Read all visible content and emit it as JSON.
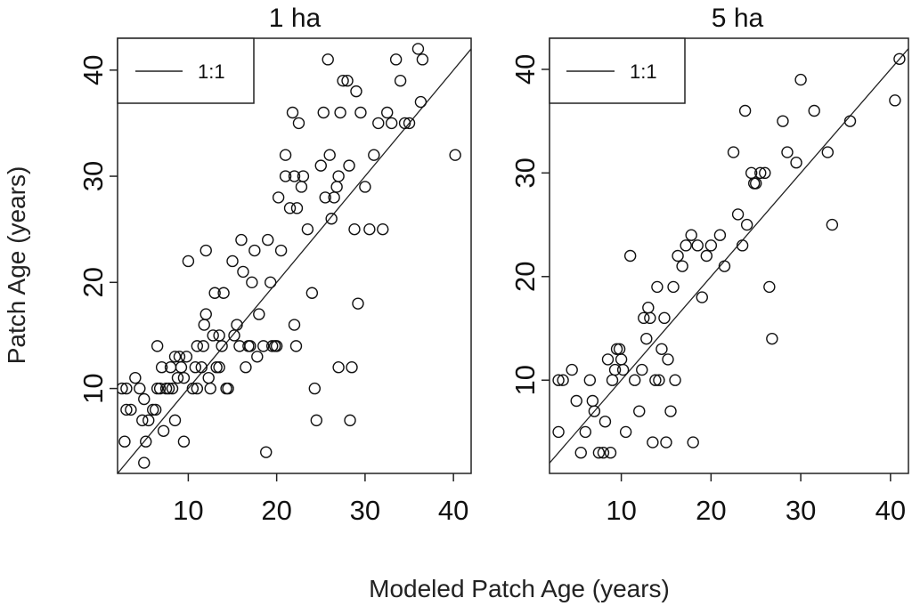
{
  "figure": {
    "xlabel": "Modeled Patch Age (years)",
    "ylabel": "Patch Age (years)"
  },
  "chart_data": [
    {
      "type": "scatter",
      "title": "1 ha",
      "xlabel": "Modeled Patch Age (years)",
      "ylabel": "Patch Age (years)",
      "xlim": [
        2,
        42
      ],
      "ylim": [
        2,
        43
      ],
      "xticks": [
        10,
        20,
        30,
        40
      ],
      "yticks": [
        10,
        20,
        30,
        40
      ],
      "grid": false,
      "legend": {
        "position": "top-left",
        "label": "1:1"
      },
      "reference_line": "1:1",
      "marker_color": "#111111",
      "points": [
        [
          2.5,
          10
        ],
        [
          3,
          10
        ],
        [
          3,
          8
        ],
        [
          2.8,
          5
        ],
        [
          3.5,
          8
        ],
        [
          4,
          11
        ],
        [
          4.5,
          10
        ],
        [
          5,
          9
        ],
        [
          4.8,
          7
        ],
        [
          5.5,
          7
        ],
        [
          5.2,
          5
        ],
        [
          5,
          3
        ],
        [
          6,
          8
        ],
        [
          6.3,
          8
        ],
        [
          6.5,
          10
        ],
        [
          6.5,
          14
        ],
        [
          6.8,
          10
        ],
        [
          7,
          12
        ],
        [
          7.2,
          6
        ],
        [
          7.5,
          10
        ],
        [
          7.8,
          10
        ],
        [
          8,
          12
        ],
        [
          8.5,
          13
        ],
        [
          8.2,
          10
        ],
        [
          8.5,
          7
        ],
        [
          8.8,
          11
        ],
        [
          9,
          13
        ],
        [
          9.2,
          12
        ],
        [
          9.5,
          11
        ],
        [
          9.5,
          5
        ],
        [
          9.8,
          13
        ],
        [
          10,
          22
        ],
        [
          10.5,
          10
        ],
        [
          10.8,
          12
        ],
        [
          11,
          10
        ],
        [
          11,
          14
        ],
        [
          11.5,
          12
        ],
        [
          11.8,
          16
        ],
        [
          11.7,
          14
        ],
        [
          12,
          17
        ],
        [
          12,
          23
        ],
        [
          12.3,
          11
        ],
        [
          12.5,
          10
        ],
        [
          12.8,
          15
        ],
        [
          13,
          19
        ],
        [
          13.2,
          12
        ],
        [
          13.5,
          12
        ],
        [
          13.5,
          15
        ],
        [
          13.8,
          14
        ],
        [
          14,
          19
        ],
        [
          14.3,
          10
        ],
        [
          14.5,
          10
        ],
        [
          15,
          22
        ],
        [
          15.2,
          15
        ],
        [
          15.5,
          16
        ],
        [
          15.8,
          14
        ],
        [
          16,
          24
        ],
        [
          16.2,
          21
        ],
        [
          16.5,
          12
        ],
        [
          16.8,
          14
        ],
        [
          17,
          14
        ],
        [
          17.2,
          20
        ],
        [
          17.5,
          23
        ],
        [
          17.8,
          13
        ],
        [
          18,
          17
        ],
        [
          18.5,
          14
        ],
        [
          18.8,
          4
        ],
        [
          19,
          24
        ],
        [
          19.3,
          20
        ],
        [
          19.5,
          14
        ],
        [
          19.8,
          14
        ],
        [
          20,
          14
        ],
        [
          20.2,
          28
        ],
        [
          20.5,
          23
        ],
        [
          21,
          32
        ],
        [
          21,
          30
        ],
        [
          21.5,
          27
        ],
        [
          21.8,
          36
        ],
        [
          22,
          30
        ],
        [
          22,
          16
        ],
        [
          22.2,
          14
        ],
        [
          22.5,
          35
        ],
        [
          22.3,
          27
        ],
        [
          22.8,
          29
        ],
        [
          23,
          30
        ],
        [
          23.5,
          25
        ],
        [
          24,
          19
        ],
        [
          24.3,
          10
        ],
        [
          24.5,
          7
        ],
        [
          25,
          31
        ],
        [
          25.3,
          36
        ],
        [
          25.5,
          28
        ],
        [
          25.8,
          41
        ],
        [
          26,
          32
        ],
        [
          26.2,
          26
        ],
        [
          26.5,
          28
        ],
        [
          26.8,
          29
        ],
        [
          27,
          30
        ],
        [
          27,
          12
        ],
        [
          27.2,
          36
        ],
        [
          27.5,
          39
        ],
        [
          28,
          39
        ],
        [
          28.2,
          31
        ],
        [
          28.5,
          12
        ],
        [
          28.3,
          7
        ],
        [
          28.8,
          25
        ],
        [
          29,
          38
        ],
        [
          29.2,
          18
        ],
        [
          29.5,
          36
        ],
        [
          30,
          29
        ],
        [
          30.5,
          25
        ],
        [
          31,
          32
        ],
        [
          31.5,
          35
        ],
        [
          32,
          25
        ],
        [
          32.5,
          36
        ],
        [
          33,
          35
        ],
        [
          33.5,
          41
        ],
        [
          34,
          39
        ],
        [
          34.5,
          35
        ],
        [
          35,
          35
        ],
        [
          36,
          42
        ],
        [
          36.5,
          41
        ],
        [
          36.3,
          37
        ],
        [
          40.2,
          32
        ]
      ]
    },
    {
      "type": "scatter",
      "title": "5 ha",
      "xlabel": "Modeled Patch Age (years)",
      "ylabel": "Patch Age (years)",
      "xlim": [
        2,
        42
      ],
      "ylim": [
        1,
        43
      ],
      "xticks": [
        10,
        20,
        30,
        40
      ],
      "yticks": [
        10,
        20,
        30,
        40
      ],
      "grid": false,
      "legend": {
        "position": "top-left",
        "label": "1:1"
      },
      "reference_line": "1:1",
      "marker_color": "#111111",
      "points": [
        [
          3,
          10
        ],
        [
          3.5,
          10
        ],
        [
          3,
          5
        ],
        [
          4.5,
          11
        ],
        [
          5,
          8
        ],
        [
          5.5,
          3
        ],
        [
          6,
          5
        ],
        [
          6.5,
          10
        ],
        [
          6.8,
          8
        ],
        [
          7,
          7
        ],
        [
          7.5,
          3
        ],
        [
          8,
          3
        ],
        [
          8.2,
          6
        ],
        [
          8.5,
          12
        ],
        [
          8.8,
          3
        ],
        [
          9,
          10
        ],
        [
          9.3,
          11
        ],
        [
          9.5,
          13
        ],
        [
          9.8,
          13
        ],
        [
          10,
          12
        ],
        [
          10.2,
          11
        ],
        [
          10.5,
          5
        ],
        [
          11,
          22
        ],
        [
          11.5,
          10
        ],
        [
          12,
          7
        ],
        [
          12.3,
          11
        ],
        [
          12.5,
          16
        ],
        [
          12.8,
          14
        ],
        [
          13,
          17
        ],
        [
          13.2,
          16
        ],
        [
          13.5,
          4
        ],
        [
          13.8,
          10
        ],
        [
          14,
          19
        ],
        [
          14.2,
          10
        ],
        [
          14.5,
          13
        ],
        [
          14.8,
          16
        ],
        [
          15,
          4
        ],
        [
          15.2,
          12
        ],
        [
          15.5,
          7
        ],
        [
          15.8,
          19
        ],
        [
          16,
          10
        ],
        [
          16.3,
          22
        ],
        [
          16.8,
          21
        ],
        [
          17.2,
          23
        ],
        [
          17.8,
          24
        ],
        [
          18,
          4
        ],
        [
          18.5,
          23
        ],
        [
          19,
          18
        ],
        [
          19.5,
          22
        ],
        [
          20,
          23
        ],
        [
          21,
          24
        ],
        [
          21.5,
          21
        ],
        [
          22.5,
          32
        ],
        [
          23,
          26
        ],
        [
          23.5,
          23
        ],
        [
          23.8,
          36
        ],
        [
          24,
          25
        ],
        [
          24.5,
          30
        ],
        [
          24.8,
          29
        ],
        [
          25,
          29
        ],
        [
          25.5,
          30
        ],
        [
          26,
          30
        ],
        [
          26.5,
          19
        ],
        [
          26.8,
          14
        ],
        [
          28,
          35
        ],
        [
          28.5,
          32
        ],
        [
          29.5,
          31
        ],
        [
          30,
          39
        ],
        [
          31.5,
          36
        ],
        [
          33,
          32
        ],
        [
          33.5,
          25
        ],
        [
          35.5,
          35
        ],
        [
          40.5,
          37
        ],
        [
          41,
          41
        ]
      ]
    }
  ]
}
